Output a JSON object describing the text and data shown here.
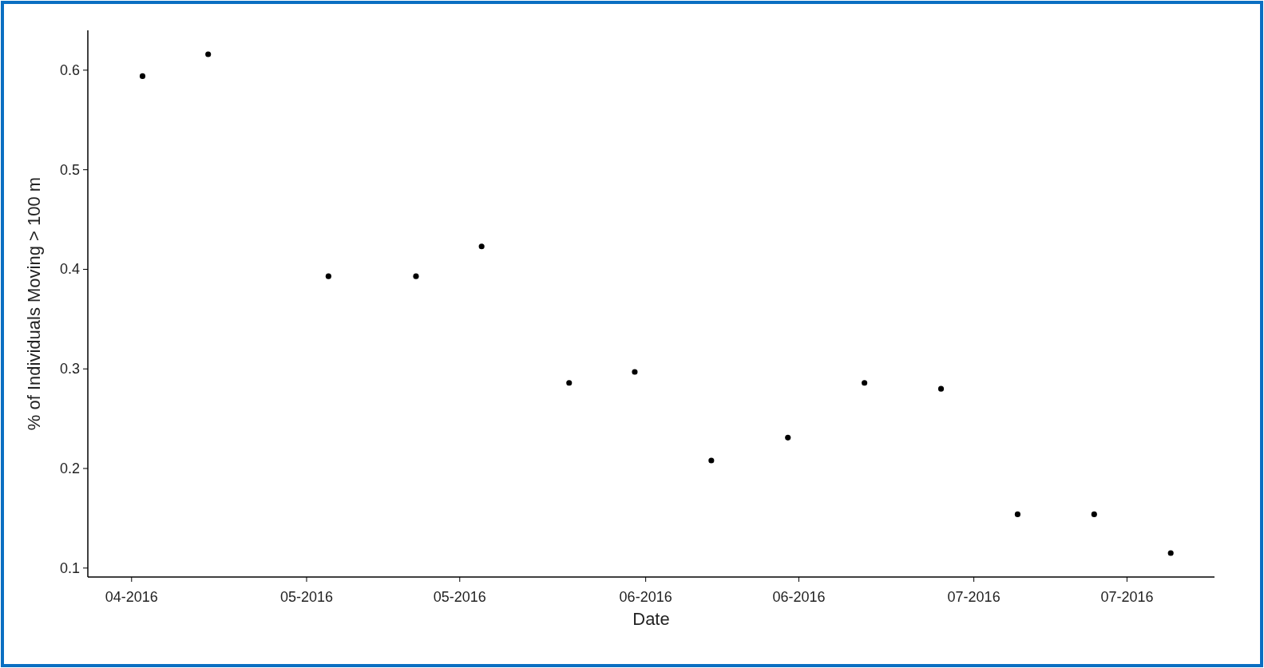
{
  "chart_data": {
    "type": "scatter",
    "xlabel": "Date",
    "ylabel": "% of Individuals Moving > 100 m",
    "x": [
      "2016-04-16",
      "2016-04-22",
      "2016-05-03",
      "2016-05-11",
      "2016-05-17",
      "2016-05-25",
      "2016-05-31",
      "2016-06-07",
      "2016-06-14",
      "2016-06-21",
      "2016-06-28",
      "2016-07-05",
      "2016-07-12",
      "2016-07-19"
    ],
    "series": [
      {
        "color": "#000000",
        "values": [
          0.594,
          0.616,
          0.393,
          0.393,
          0.423,
          0.286,
          0.297,
          0.208,
          0.231,
          0.286,
          0.28,
          0.154,
          0.154,
          0.115
        ]
      }
    ],
    "xlim": [
      "2016-04-11",
      "2016-07-23"
    ],
    "xticks": [
      {
        "value": "2016-04-15",
        "label": "04-2016"
      },
      {
        "value": "2016-05-01",
        "label": "05-2016"
      },
      {
        "value": "2016-05-15",
        "label": "05-2016"
      },
      {
        "value": "2016-06-01",
        "label": "06-2016"
      },
      {
        "value": "2016-06-15",
        "label": "06-2016"
      },
      {
        "value": "2016-07-01",
        "label": "07-2016"
      },
      {
        "value": "2016-07-15",
        "label": "07-2016"
      }
    ],
    "ylim": [
      0.091,
      0.64
    ],
    "yticks": [
      0.1,
      0.2,
      0.3,
      0.4,
      0.5,
      0.6
    ],
    "grid": false,
    "marker": "circle"
  }
}
